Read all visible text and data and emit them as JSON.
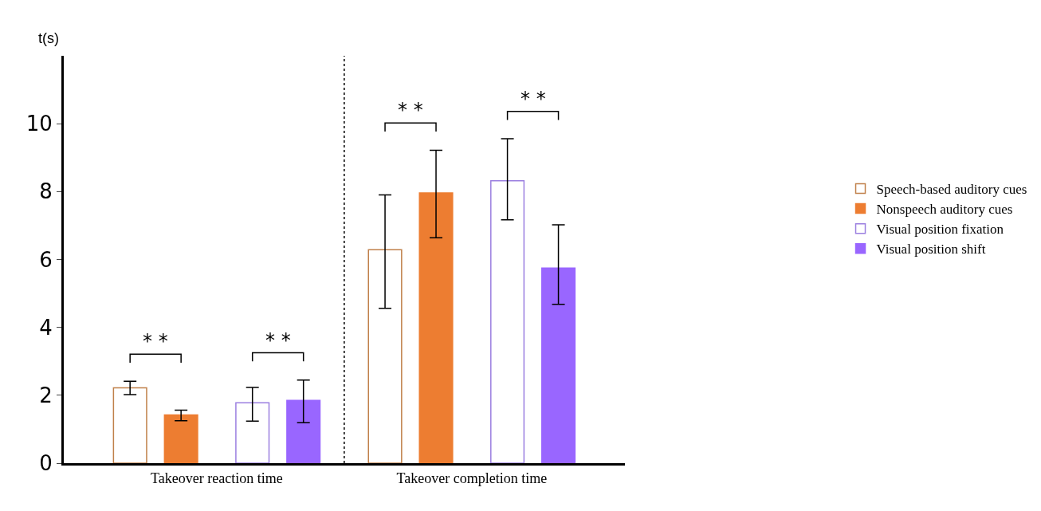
{
  "chart_data": {
    "type": "bar",
    "ylabel": "t(s)",
    "categories": [
      "Takeover reaction time",
      "Takeover completion time"
    ],
    "series": [
      {
        "name": "Speech-based auditory cues",
        "color": "#c0804a",
        "values": [
          2.22,
          6.29
        ],
        "errors": [
          [
            2.02,
            2.41
          ],
          [
            4.56,
            7.9
          ]
        ]
      },
      {
        "name": "Nonspeech auditory cues",
        "color": "#ed7d31",
        "values": [
          1.42,
          7.96
        ],
        "errors": [
          [
            1.25,
            1.56
          ],
          [
            6.64,
            9.22
          ]
        ]
      },
      {
        "name": "Visual position fixation",
        "color": "#9b7fe0",
        "values": [
          1.78,
          8.32
        ],
        "errors": [
          [
            1.24,
            2.23
          ],
          [
            7.17,
            9.56
          ]
        ]
      },
      {
        "name": "Visual position shift",
        "color": "#9966ff",
        "values": [
          1.85,
          5.75
        ],
        "errors": [
          [
            1.19,
            2.45
          ],
          [
            4.68,
            7.02
          ]
        ]
      }
    ],
    "ylim": [
      0,
      12
    ],
    "yticks": [
      0,
      2,
      4,
      6,
      8,
      10
    ],
    "annotations": [
      "* *",
      "* *",
      "* *",
      "* *"
    ],
    "grid": false,
    "legend": "right"
  }
}
